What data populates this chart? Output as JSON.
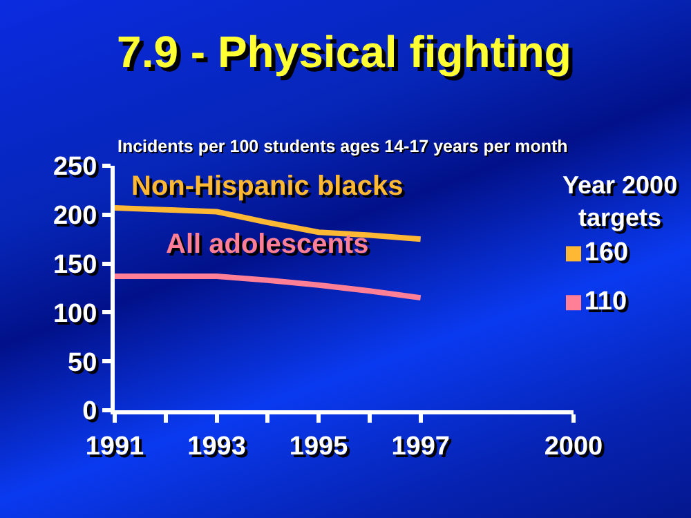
{
  "chart_data": {
    "type": "line",
    "title": "7.9 - Physical fighting",
    "ylabel": "Incidents per 100 students ages 14-17 years per month",
    "x": [
      1991,
      1992,
      1993,
      1994,
      1995,
      1996,
      1997
    ],
    "series": [
      {
        "name": "Non-Hispanic blacks",
        "color": "#ffb833",
        "values": [
          207,
          205,
          203,
          192,
          182,
          179,
          175
        ]
      },
      {
        "name": "All adolescents",
        "color": "#ff7f96",
        "values": [
          137,
          137,
          137,
          133,
          128,
          122,
          115
        ]
      },
      {
        "type": "scatter",
        "marker": "square",
        "color": "#ffb833",
        "x": [
          2000
        ],
        "values": [
          160
        ],
        "value_labels": [
          "160"
        ]
      },
      {
        "type": "scatter",
        "marker": "square",
        "color": "#ff7f96",
        "x": [
          2000
        ],
        "values": [
          110
        ],
        "value_labels": [
          "110"
        ]
      }
    ],
    "annotations": [
      "Year 2000\ntargets"
    ],
    "xlim": [
      1991,
      2000
    ],
    "xticks": [
      1991,
      {
        "value": 1992,
        "label": null
      },
      1993,
      {
        "value": 1994,
        "label": null
      },
      1995,
      {
        "value": 1996,
        "label": null
      },
      1997,
      2000
    ],
    "ylim": [
      0,
      250
    ],
    "yticks": [
      0,
      50,
      100,
      150,
      200,
      250
    ],
    "grid": false,
    "legend": false,
    "marker": "none",
    "line_style": "solid"
  }
}
